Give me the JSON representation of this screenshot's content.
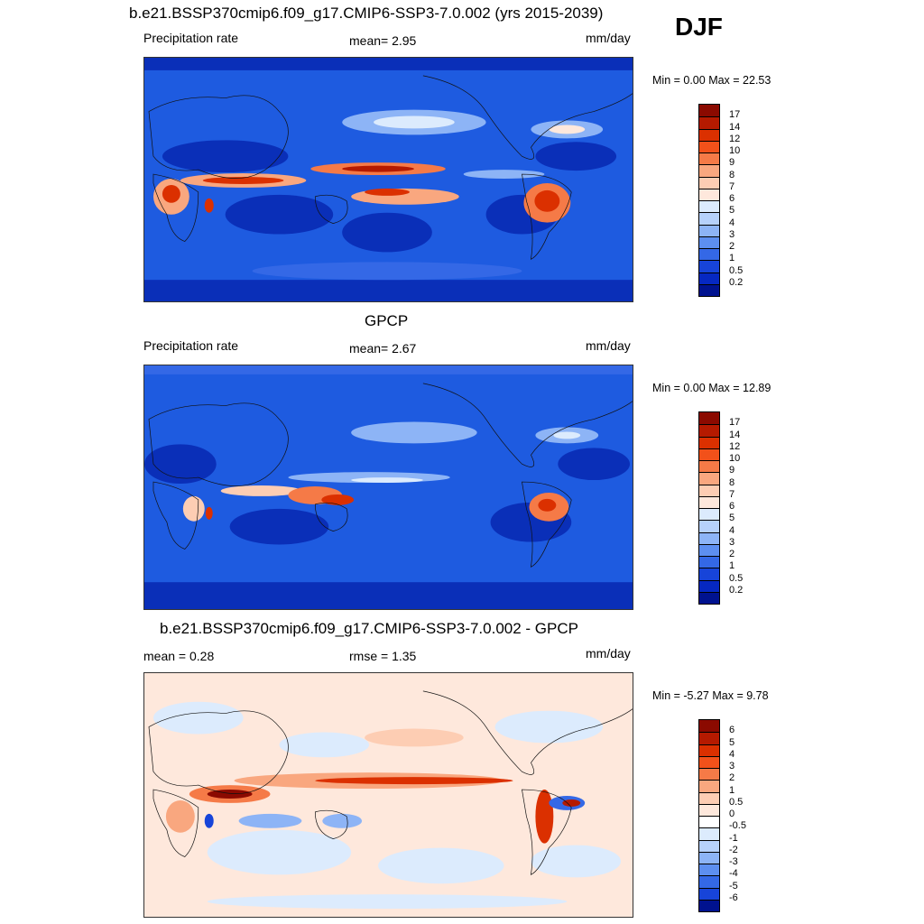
{
  "season": "DJF",
  "panels": [
    {
      "id": "model",
      "title": "b.e21.BSSP370cmip6.f09_g17.CMIP6-SSP3-7.0.002 (yrs 2015-2039)",
      "left_label": "Precipitation rate",
      "center_label": "mean=   2.95",
      "units": "mm/day",
      "minmax": "Min =   0.00 Max =  22.53",
      "palette": "precip",
      "colorbar_labels": [
        "17",
        "14",
        "12",
        "10",
        "9",
        "8",
        "7",
        "6",
        "5",
        "4",
        "3",
        "2",
        "1",
        "0.5",
        "0.2"
      ],
      "colorbar_colors": [
        "#8b0a00",
        "#b51a00",
        "#db3000",
        "#f2511a",
        "#f57a47",
        "#f9a77f",
        "#fdcdb3",
        "#fee8dc",
        "#dcebfd",
        "#b6d1fb",
        "#8db4f6",
        "#5d8ff0",
        "#3468e6",
        "#1744d9",
        "#0628c2",
        "#00128f"
      ]
    },
    {
      "id": "obs",
      "title": "GPCP",
      "left_label": "Precipitation rate",
      "center_label": "mean=   2.67",
      "units": "mm/day",
      "minmax": "Min =   0.00 Max =  12.89",
      "palette": "precip",
      "colorbar_labels": [
        "17",
        "14",
        "12",
        "10",
        "9",
        "8",
        "7",
        "6",
        "5",
        "4",
        "3",
        "2",
        "1",
        "0.5",
        "0.2"
      ],
      "colorbar_colors": [
        "#8b0a00",
        "#b51a00",
        "#db3000",
        "#f2511a",
        "#f57a47",
        "#f9a77f",
        "#fdcdb3",
        "#fee8dc",
        "#dcebfd",
        "#b6d1fb",
        "#8db4f6",
        "#5d8ff0",
        "#3468e6",
        "#1744d9",
        "#0628c2",
        "#00128f"
      ]
    },
    {
      "id": "diff",
      "title": "b.e21.BSSP370cmip6.f09_g17.CMIP6-SSP3-7.0.002 - GPCP",
      "left_label": "mean =   0.28",
      "center_label": "rmse =   1.35",
      "units": "mm/day",
      "minmax": "Min =  -5.27 Max =   9.78",
      "palette": "diff",
      "colorbar_labels": [
        "6",
        "5",
        "4",
        "3",
        "2",
        "1",
        "0.5",
        "0",
        "-0.5",
        "-1",
        "-2",
        "-3",
        "-4",
        "-5",
        "-6"
      ],
      "colorbar_colors": [
        "#8b0a00",
        "#b51a00",
        "#db3000",
        "#f2511a",
        "#f57a47",
        "#f9a77f",
        "#fdcdb3",
        "#fee8dc",
        "#ffffff",
        "#dcebfd",
        "#b6d1fb",
        "#8db4f6",
        "#5d8ff0",
        "#3468e6",
        "#1744d9",
        "#00128f"
      ]
    }
  ]
}
